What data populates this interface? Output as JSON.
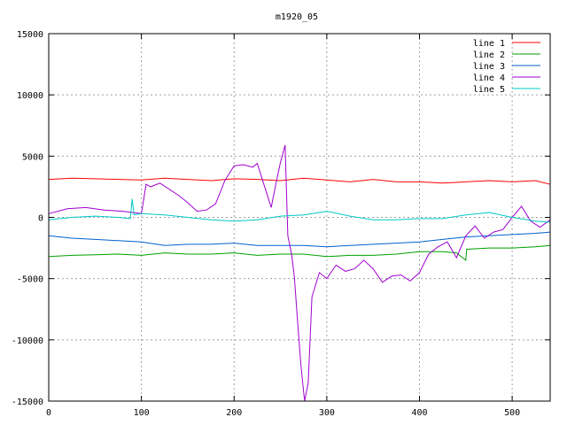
{
  "chart_data": {
    "type": "line",
    "title": "m1920_05",
    "xlabel": "",
    "ylabel": "",
    "xlim": [
      0,
      541
    ],
    "ylim": [
      -15000,
      15000
    ],
    "xticks": [
      0,
      100,
      200,
      300,
      400,
      500
    ],
    "yticks": [
      -15000,
      -10000,
      -5000,
      0,
      5000,
      10000,
      15000
    ],
    "grid": true,
    "legend_position": "top-right",
    "series": [
      {
        "name": "line 1",
        "color": "#ff0000",
        "x": [
          0,
          25,
          50,
          75,
          100,
          125,
          150,
          175,
          200,
          225,
          250,
          275,
          300,
          325,
          350,
          375,
          400,
          425,
          450,
          475,
          500,
          525,
          541
        ],
        "y": [
          3100,
          3200,
          3150,
          3100,
          3050,
          3200,
          3100,
          3000,
          3150,
          3100,
          3000,
          3200,
          3050,
          2900,
          3100,
          2900,
          2900,
          2800,
          2900,
          3000,
          2900,
          3000,
          2700
        ]
      },
      {
        "name": "line 2",
        "color": "#00a000",
        "x": [
          0,
          25,
          50,
          75,
          100,
          125,
          150,
          175,
          200,
          225,
          250,
          275,
          300,
          325,
          350,
          375,
          400,
          425,
          440,
          450,
          451,
          475,
          500,
          525,
          541
        ],
        "y": [
          -3200,
          -3100,
          -3050,
          -3000,
          -3100,
          -2900,
          -3000,
          -3000,
          -2900,
          -3100,
          -3000,
          -3000,
          -3200,
          -3100,
          -3100,
          -3000,
          -2800,
          -2800,
          -2900,
          -3500,
          -2600,
          -2500,
          -2500,
          -2400,
          -2300
        ]
      },
      {
        "name": "line 3",
        "color": "#0060d0",
        "x": [
          0,
          25,
          50,
          75,
          100,
          125,
          150,
          175,
          200,
          225,
          250,
          275,
          300,
          325,
          350,
          375,
          400,
          425,
          450,
          475,
          500,
          525,
          541
        ],
        "y": [
          -1500,
          -1700,
          -1800,
          -1900,
          -2000,
          -2300,
          -2200,
          -2200,
          -2100,
          -2300,
          -2300,
          -2300,
          -2400,
          -2300,
          -2200,
          -2100,
          -2000,
          -1800,
          -1600,
          -1500,
          -1400,
          -1300,
          -1200
        ]
      },
      {
        "name": "line 4",
        "color": "#a000d0",
        "x": [
          0,
          20,
          40,
          60,
          80,
          100,
          105,
          110,
          120,
          140,
          150,
          160,
          170,
          180,
          190,
          200,
          210,
          220,
          225,
          235,
          240,
          245,
          250,
          255,
          258,
          262,
          265,
          268,
          272,
          276,
          280,
          284,
          288,
          292,
          300,
          310,
          320,
          330,
          340,
          350,
          360,
          370,
          380,
          390,
          400,
          410,
          420,
          430,
          440,
          450,
          460,
          470,
          480,
          490,
          500,
          510,
          520,
          530,
          541
        ],
        "y": [
          300,
          700,
          800,
          600,
          500,
          300,
          2700,
          2500,
          2800,
          1800,
          1200,
          500,
          600,
          1100,
          3000,
          4200,
          4300,
          4100,
          4400,
          2000,
          800,
          2700,
          4500,
          5900,
          -1500,
          -3000,
          -4800,
          -8000,
          -12000,
          -15000,
          -13500,
          -6500,
          -5500,
          -4500,
          -5000,
          -3900,
          -4400,
          -4200,
          -3500,
          -4200,
          -5300,
          -4800,
          -4700,
          -5200,
          -4500,
          -3000,
          -2400,
          -2000,
          -3300,
          -1500,
          -700,
          -1700,
          -1200,
          -1000,
          0,
          900,
          -300,
          -800,
          -200
        ]
      },
      {
        "name": "line 5",
        "color": "#00c8c8",
        "x": [
          0,
          25,
          50,
          75,
          88,
          90,
          92,
          100,
          125,
          150,
          175,
          200,
          225,
          250,
          275,
          300,
          325,
          350,
          375,
          400,
          425,
          450,
          475,
          500,
          525,
          541
        ],
        "y": [
          -200,
          0,
          100,
          0,
          -100,
          1500,
          200,
          300,
          200,
          0,
          -200,
          -300,
          -200,
          100,
          200,
          500,
          100,
          -200,
          -200,
          -100,
          -100,
          200,
          400,
          0,
          -300,
          -400
        ]
      }
    ]
  }
}
